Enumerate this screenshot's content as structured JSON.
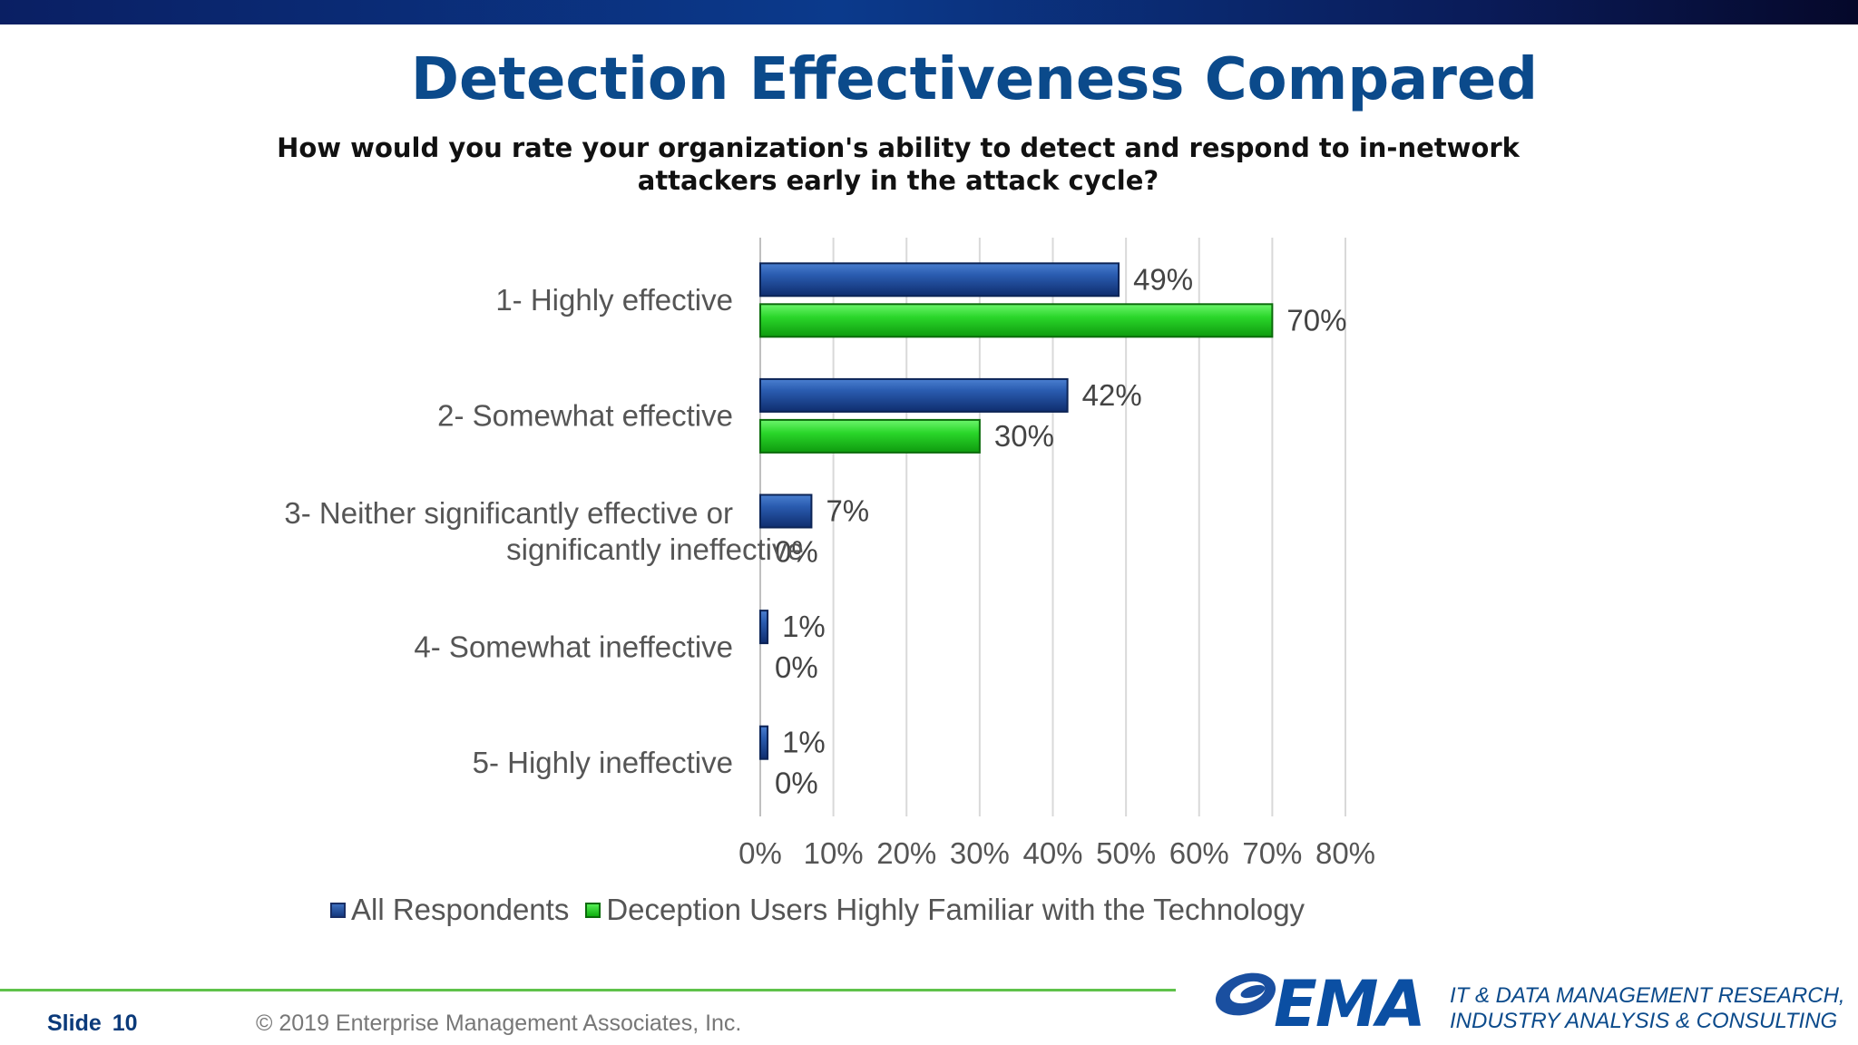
{
  "slide": {
    "title": "Detection Effectiveness Compared",
    "question": "How would you rate your organization's ability to detect and respond to in-network attackers early in the attack cycle?",
    "slide_label": "Slide",
    "slide_number": "10",
    "copyright": "© 2019 Enterprise Management Associates, Inc.",
    "logo_text": "EMA",
    "tagline_line1": "IT & DATA MANAGEMENT RESEARCH,",
    "tagline_line2": "INDUSTRY ANALYSIS & CONSULTING"
  },
  "colors": {
    "title": "#0b4a8b",
    "series_blue": "#1f4e9c",
    "series_green": "#22cc22",
    "footer_line": "#5fc24a"
  },
  "chart_data": {
    "type": "bar",
    "orientation": "horizontal",
    "title": "How would you rate your organization's ability to detect and respond to in-network attackers early in the attack cycle?",
    "categories": [
      [
        "1- Highly effective"
      ],
      [
        "2- Somewhat effective"
      ],
      [
        "3- Neither significantly effective or",
        "significantly ineffective"
      ],
      [
        "4- Somewhat ineffective"
      ],
      [
        "5- Highly ineffective"
      ]
    ],
    "series": [
      {
        "name": "All Respondents",
        "values": [
          49,
          42,
          7,
          1,
          1
        ],
        "labels": [
          "49%",
          "42%",
          "7%",
          "1%",
          "1%"
        ]
      },
      {
        "name": "Deception Users Highly Familiar with the Technology",
        "values": [
          70,
          30,
          0,
          0,
          0
        ],
        "labels": [
          "70%",
          "30%",
          "0%",
          "0%",
          "0%"
        ]
      }
    ],
    "xlim": [
      0,
      80
    ],
    "xticks": [
      0,
      10,
      20,
      30,
      40,
      50,
      60,
      70,
      80
    ],
    "xtick_labels": [
      "0%",
      "10%",
      "20%",
      "30%",
      "40%",
      "50%",
      "60%",
      "70%",
      "80%"
    ],
    "grid": true,
    "legend_position": "bottom"
  }
}
